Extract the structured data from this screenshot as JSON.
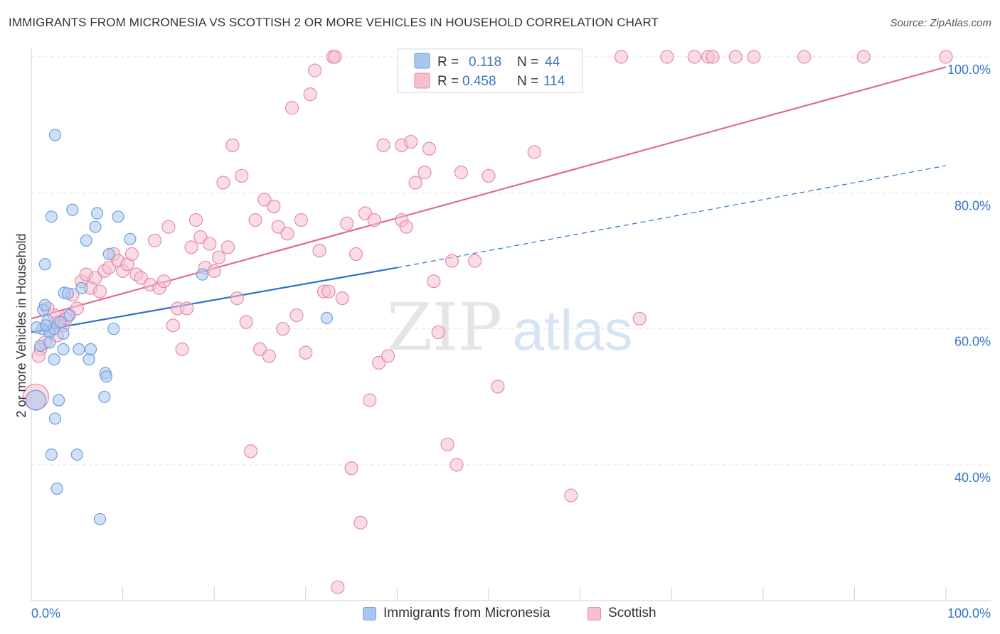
{
  "header": {
    "title": "IMMIGRANTS FROM MICRONESIA VS SCOTTISH 2 OR MORE VEHICLES IN HOUSEHOLD CORRELATION CHART",
    "source": "Source: ZipAtlas.com"
  },
  "watermark": {
    "zip": "ZIP",
    "atlas": "atlas"
  },
  "colors": {
    "blue": "#6f9fe0",
    "blue_fill": "#a9c6f0",
    "blue_line": "#2f6fcc",
    "pink": "#e58aa7",
    "pink_fill": "#f6bfd0",
    "pink_line": "#e06a93",
    "axis_text": "#3a74c4"
  },
  "chart_data": {
    "type": "scatter",
    "title": "IMMIGRANTS FROM MICRONESIA VS SCOTTISH 2 OR MORE VEHICLES IN HOUSEHOLD CORRELATION CHART",
    "xlabel": "",
    "ylabel": "2 or more Vehicles in Household",
    "xlim": [
      0,
      100
    ],
    "ylim": [
      20,
      103
    ],
    "x_tick_labels": [
      "0.0%",
      "100.0%"
    ],
    "y_ticks": [
      40,
      60,
      80,
      100
    ],
    "y_tick_labels": [
      "40.0%",
      "60.0%",
      "80.0%",
      "100.0%"
    ],
    "grid": true,
    "legend_placement": "top-center",
    "legend": [
      {
        "r_label": "R =",
        "r_value": "0.118",
        "n_label": "N =",
        "n_value": "44"
      },
      {
        "r_label": "R =",
        "r_value": "0.458",
        "n_label": "N =",
        "n_value": "114"
      }
    ],
    "series": [
      {
        "name": "Immigrants from Micronesia",
        "trend": {
          "x0": 0,
          "y0": 59.5,
          "x1": 40,
          "y1": 69.0,
          "dashed_to_x": 100,
          "dashed_to_y": 84.0
        },
        "points": [
          [
            0.5,
            49.5
          ],
          [
            1.0,
            57.5
          ],
          [
            1.2,
            60.0
          ],
          [
            1.3,
            62.8
          ],
          [
            1.5,
            63.5
          ],
          [
            1.5,
            69.5
          ],
          [
            1.8,
            61.2
          ],
          [
            2.0,
            59.5
          ],
          [
            2.0,
            58.0
          ],
          [
            2.2,
            41.5
          ],
          [
            2.2,
            76.5
          ],
          [
            2.5,
            55.5
          ],
          [
            2.5,
            60.0
          ],
          [
            2.6,
            46.8
          ],
          [
            2.6,
            88.5
          ],
          [
            2.8,
            36.5
          ],
          [
            3.0,
            49.5
          ],
          [
            3.2,
            61.0
          ],
          [
            3.5,
            59.3
          ],
          [
            3.5,
            57.0
          ],
          [
            3.6,
            65.3
          ],
          [
            4.0,
            65.2
          ],
          [
            4.2,
            62.0
          ],
          [
            4.5,
            77.5
          ],
          [
            5.0,
            41.5
          ],
          [
            5.2,
            57.0
          ],
          [
            5.5,
            66.0
          ],
          [
            6.0,
            73.0
          ],
          [
            6.3,
            55.5
          ],
          [
            6.5,
            57.0
          ],
          [
            7.0,
            75.0
          ],
          [
            7.2,
            77.0
          ],
          [
            7.5,
            32.0
          ],
          [
            8.0,
            50.0
          ],
          [
            8.1,
            53.5
          ],
          [
            8.2,
            53.0
          ],
          [
            8.5,
            71.0
          ],
          [
            9.0,
            60.0
          ],
          [
            9.5,
            76.5
          ],
          [
            10.8,
            73.2
          ],
          [
            18.7,
            68.0
          ],
          [
            32.3,
            61.6
          ],
          [
            0.6,
            60.2
          ],
          [
            1.6,
            60.5
          ]
        ]
      },
      {
        "name": "Scottish",
        "trend": {
          "x0": 0,
          "y0": 61.5,
          "x1": 100,
          "y1": 98.5
        },
        "points": [
          [
            0.5,
            50.0
          ],
          [
            1.0,
            57.0
          ],
          [
            1.5,
            58.0
          ],
          [
            2.0,
            60.0
          ],
          [
            2.5,
            62.0
          ],
          [
            3.0,
            61.0
          ],
          [
            3.5,
            60.5
          ],
          [
            4.0,
            62.0
          ],
          [
            4.5,
            65.0
          ],
          [
            5.0,
            63.0
          ],
          [
            5.5,
            67.0
          ],
          [
            6.0,
            68.0
          ],
          [
            6.5,
            66.0
          ],
          [
            7.0,
            67.5
          ],
          [
            7.5,
            65.5
          ],
          [
            8.0,
            68.5
          ],
          [
            8.5,
            69.0
          ],
          [
            9.0,
            71.0
          ],
          [
            9.5,
            70.0
          ],
          [
            10.0,
            68.5
          ],
          [
            10.5,
            69.5
          ],
          [
            11.0,
            71.0
          ],
          [
            11.5,
            68.0
          ],
          [
            12.0,
            67.5
          ],
          [
            13.0,
            66.5
          ],
          [
            13.5,
            73.0
          ],
          [
            14.0,
            66.0
          ],
          [
            14.5,
            67.0
          ],
          [
            15.0,
            75.0
          ],
          [
            15.5,
            60.5
          ],
          [
            16.0,
            63.0
          ],
          [
            16.5,
            57.0
          ],
          [
            17.0,
            63.0
          ],
          [
            17.5,
            72.0
          ],
          [
            18.0,
            76.0
          ],
          [
            18.5,
            73.5
          ],
          [
            19.0,
            69.0
          ],
          [
            19.5,
            72.5
          ],
          [
            20.0,
            68.5
          ],
          [
            20.5,
            70.5
          ],
          [
            21.0,
            81.5
          ],
          [
            21.5,
            72.0
          ],
          [
            22.0,
            87.0
          ],
          [
            22.5,
            64.5
          ],
          [
            23.0,
            82.5
          ],
          [
            23.5,
            61.0
          ],
          [
            24.0,
            42.0
          ],
          [
            24.5,
            76.0
          ],
          [
            25.0,
            57.0
          ],
          [
            25.5,
            79.0
          ],
          [
            26.0,
            56.0
          ],
          [
            26.5,
            78.0
          ],
          [
            27.0,
            75.0
          ],
          [
            27.5,
            60.0
          ],
          [
            28.0,
            74.0
          ],
          [
            28.5,
            92.5
          ],
          [
            29.0,
            62.0
          ],
          [
            29.5,
            76.0
          ],
          [
            30.0,
            56.5
          ],
          [
            30.5,
            94.5
          ],
          [
            31.0,
            98.0
          ],
          [
            31.5,
            71.5
          ],
          [
            32.0,
            65.5
          ],
          [
            32.5,
            65.5
          ],
          [
            33.0,
            100.0
          ],
          [
            33.2,
            100.0
          ],
          [
            33.5,
            22.0
          ],
          [
            34.0,
            64.5
          ],
          [
            34.5,
            75.5
          ],
          [
            35.0,
            39.5
          ],
          [
            35.5,
            71.0
          ],
          [
            36.0,
            31.5
          ],
          [
            36.5,
            77.0
          ],
          [
            37.0,
            49.5
          ],
          [
            37.5,
            76.0
          ],
          [
            38.0,
            55.0
          ],
          [
            38.5,
            87.0
          ],
          [
            39.0,
            56.0
          ],
          [
            40.5,
            87.0
          ],
          [
            40.5,
            76.0
          ],
          [
            41.0,
            75.0
          ],
          [
            41.5,
            87.5
          ],
          [
            42.0,
            81.5
          ],
          [
            43.0,
            83.0
          ],
          [
            43.5,
            86.5
          ],
          [
            44.0,
            67.0
          ],
          [
            44.5,
            59.5
          ],
          [
            45.5,
            96.0
          ],
          [
            45.5,
            43.0
          ],
          [
            46.0,
            70.0
          ],
          [
            46.5,
            40.0
          ],
          [
            47.0,
            83.0
          ],
          [
            48.0,
            100.0
          ],
          [
            48.5,
            70.0
          ],
          [
            50.0,
            82.5
          ],
          [
            51.0,
            51.5
          ],
          [
            55.0,
            86.0
          ],
          [
            57.5,
            100.0
          ],
          [
            59.0,
            35.5
          ],
          [
            64.5,
            100.0
          ],
          [
            66.5,
            61.5
          ],
          [
            69.5,
            100.0
          ],
          [
            72.5,
            100.0
          ],
          [
            74.0,
            100.0
          ],
          [
            74.5,
            100.0
          ],
          [
            77.0,
            100.0
          ],
          [
            79.0,
            100.0
          ],
          [
            84.5,
            100.0
          ],
          [
            91.0,
            100.0
          ],
          [
            100.0,
            100.0
          ],
          [
            0.8,
            56.0
          ],
          [
            1.8,
            63.0
          ],
          [
            2.8,
            59.0
          ],
          [
            3.8,
            61.5
          ]
        ]
      }
    ]
  },
  "bottom_legend": [
    {
      "label": "Immigrants from Micronesia"
    },
    {
      "label": "Scottish"
    }
  ]
}
